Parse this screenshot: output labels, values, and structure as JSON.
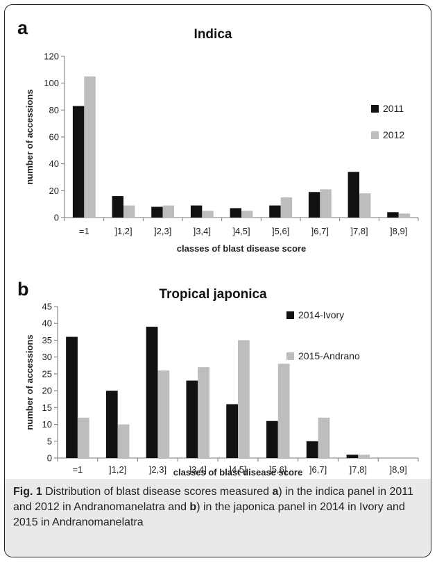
{
  "chart_data": [
    {
      "panel_label": "a",
      "type": "bar",
      "title": "Indica",
      "xlabel": "classes of blast disease score",
      "ylabel": "number of accessions",
      "ylim": [
        0,
        120
      ],
      "yticks": [
        "0",
        "20",
        "40",
        "60",
        "80",
        "100",
        "120"
      ],
      "categories": [
        "=1",
        "]1,2]",
        "]2,3]",
        "]3,4]",
        "]4,5]",
        "]5,6]",
        "]6,7]",
        "]7,8]",
        "]8,9]"
      ],
      "series": [
        {
          "name": "2011",
          "color": "#111111",
          "values": [
            83,
            16,
            8,
            9,
            7,
            9,
            19,
            34,
            4
          ]
        },
        {
          "name": "2012",
          "color": "#bdbdbd",
          "values": [
            105,
            9,
            9,
            5,
            5,
            15,
            21,
            18,
            3
          ]
        }
      ],
      "legend": "right"
    },
    {
      "panel_label": "b",
      "type": "bar",
      "title": "Tropical japonica",
      "xlabel": "classes of blast disease score",
      "ylabel": "number of accessions",
      "ylim": [
        0,
        45
      ],
      "yticks": [
        "0",
        "5",
        "10",
        "15",
        "20",
        "25",
        "30",
        "35",
        "40",
        "45"
      ],
      "categories": [
        "=1",
        "]1,2]",
        "]2,3]",
        "]3,4]",
        "]4,5]",
        "]5,6]",
        "]6,7]",
        "]7,8]",
        "]8,9]"
      ],
      "series": [
        {
          "name": "2014-Ivory",
          "color": "#111111",
          "values": [
            36,
            20,
            39,
            23,
            16,
            11,
            5,
            1,
            0
          ]
        },
        {
          "name": "2015-Andrano",
          "color": "#bdbdbd",
          "values": [
            12,
            10,
            26,
            27,
            35,
            28,
            12,
            1,
            0
          ]
        }
      ],
      "legend": "top-right"
    }
  ],
  "caption": {
    "label": "Fig. 1",
    "part1": " Distribution of blast disease scores measured ",
    "ref_a": "a",
    "part2": ") in the indica panel in 2011 and 2012 in Andranomanelatra and ",
    "ref_b": "b",
    "part3": ") in the japonica panel in 2014 in Ivory and 2015 in Andranomanelatra"
  }
}
